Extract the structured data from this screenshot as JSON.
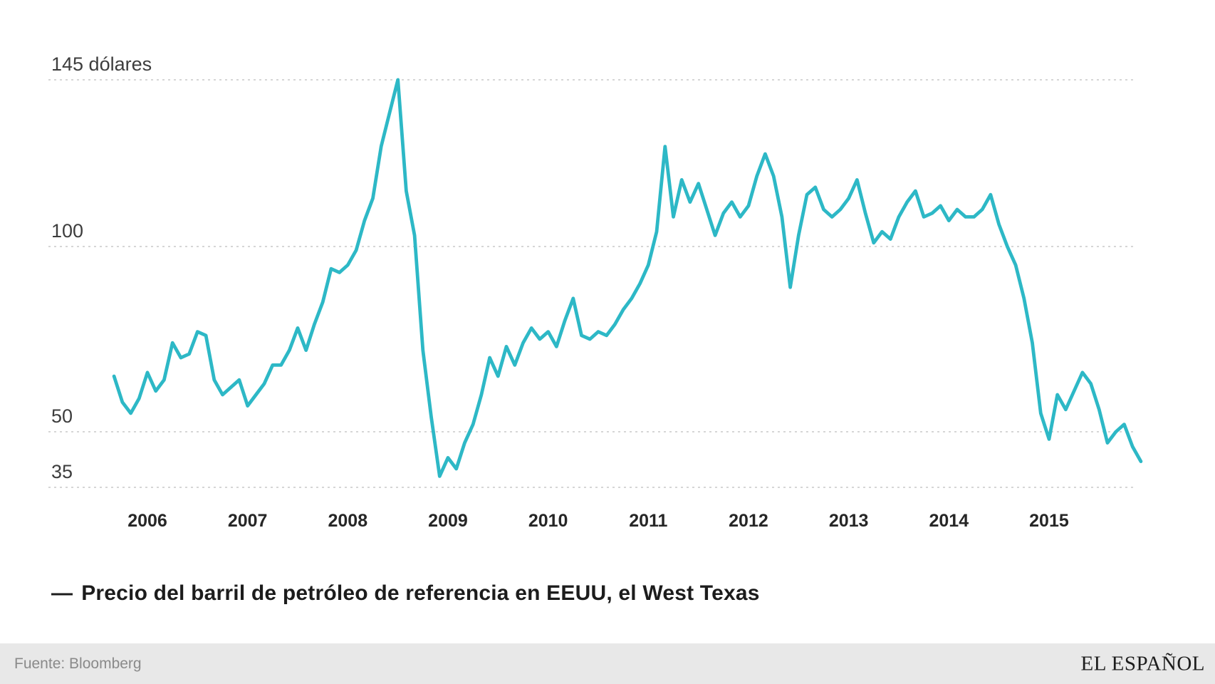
{
  "legend": {
    "marker": "—",
    "label": "Precio del barril de petróleo de referencia en EEUU, el West Texas"
  },
  "footer": {
    "source": "Fuente: Bloomberg",
    "brand": "EL ESPAÑOL"
  },
  "colors": {
    "line": "#2db8c6",
    "grid": "#c8c8c8",
    "footer_bg": "#e8e8e8"
  },
  "chart_data": {
    "type": "line",
    "series_label": "Precio del barril de petróleo de referencia en EEUU, el West Texas",
    "unit": "dólares por barril",
    "frequency": "monthly",
    "start_month": "2005-09",
    "end_month": "2015-12",
    "values": [
      65,
      58,
      55,
      59,
      66,
      61,
      64,
      74,
      70,
      71,
      77,
      76,
      64,
      60,
      62,
      64,
      57,
      60,
      63,
      68,
      68,
      72,
      78,
      72,
      79,
      85,
      94,
      93,
      95,
      99,
      107,
      113,
      127,
      136,
      145,
      115,
      103,
      72,
      54,
      38,
      43,
      40,
      47,
      52,
      60,
      70,
      65,
      73,
      68,
      74,
      78,
      75,
      77,
      73,
      80,
      86,
      76,
      75,
      77,
      76,
      79,
      83,
      86,
      90,
      95,
      104,
      127,
      108,
      118,
      112,
      117,
      110,
      103,
      109,
      112,
      108,
      111,
      119,
      125,
      119,
      108,
      89,
      103,
      114,
      116,
      110,
      108,
      110,
      113,
      118,
      109,
      101,
      104,
      102,
      108,
      112,
      115,
      108,
      109,
      111,
      107,
      110,
      108,
      108,
      110,
      114,
      106,
      100,
      95,
      86,
      74,
      55,
      48,
      60,
      56,
      61,
      66,
      63,
      56,
      47,
      50,
      52,
      46,
      42
    ],
    "y_ticks": [
      {
        "label": "145 dólares",
        "value": 145
      },
      {
        "label": "100",
        "value": 100
      },
      {
        "label": "50",
        "value": 50
      },
      {
        "label": "35",
        "value": 35
      }
    ],
    "x_ticks": [
      "2006",
      "2007",
      "2008",
      "2009",
      "2010",
      "2011",
      "2012",
      "2013",
      "2014",
      "2015"
    ],
    "ylim": [
      33,
      150
    ],
    "grid": "horizontal-dashed",
    "legend_position": "bottom-left",
    "line_color": "#2db8c6"
  }
}
